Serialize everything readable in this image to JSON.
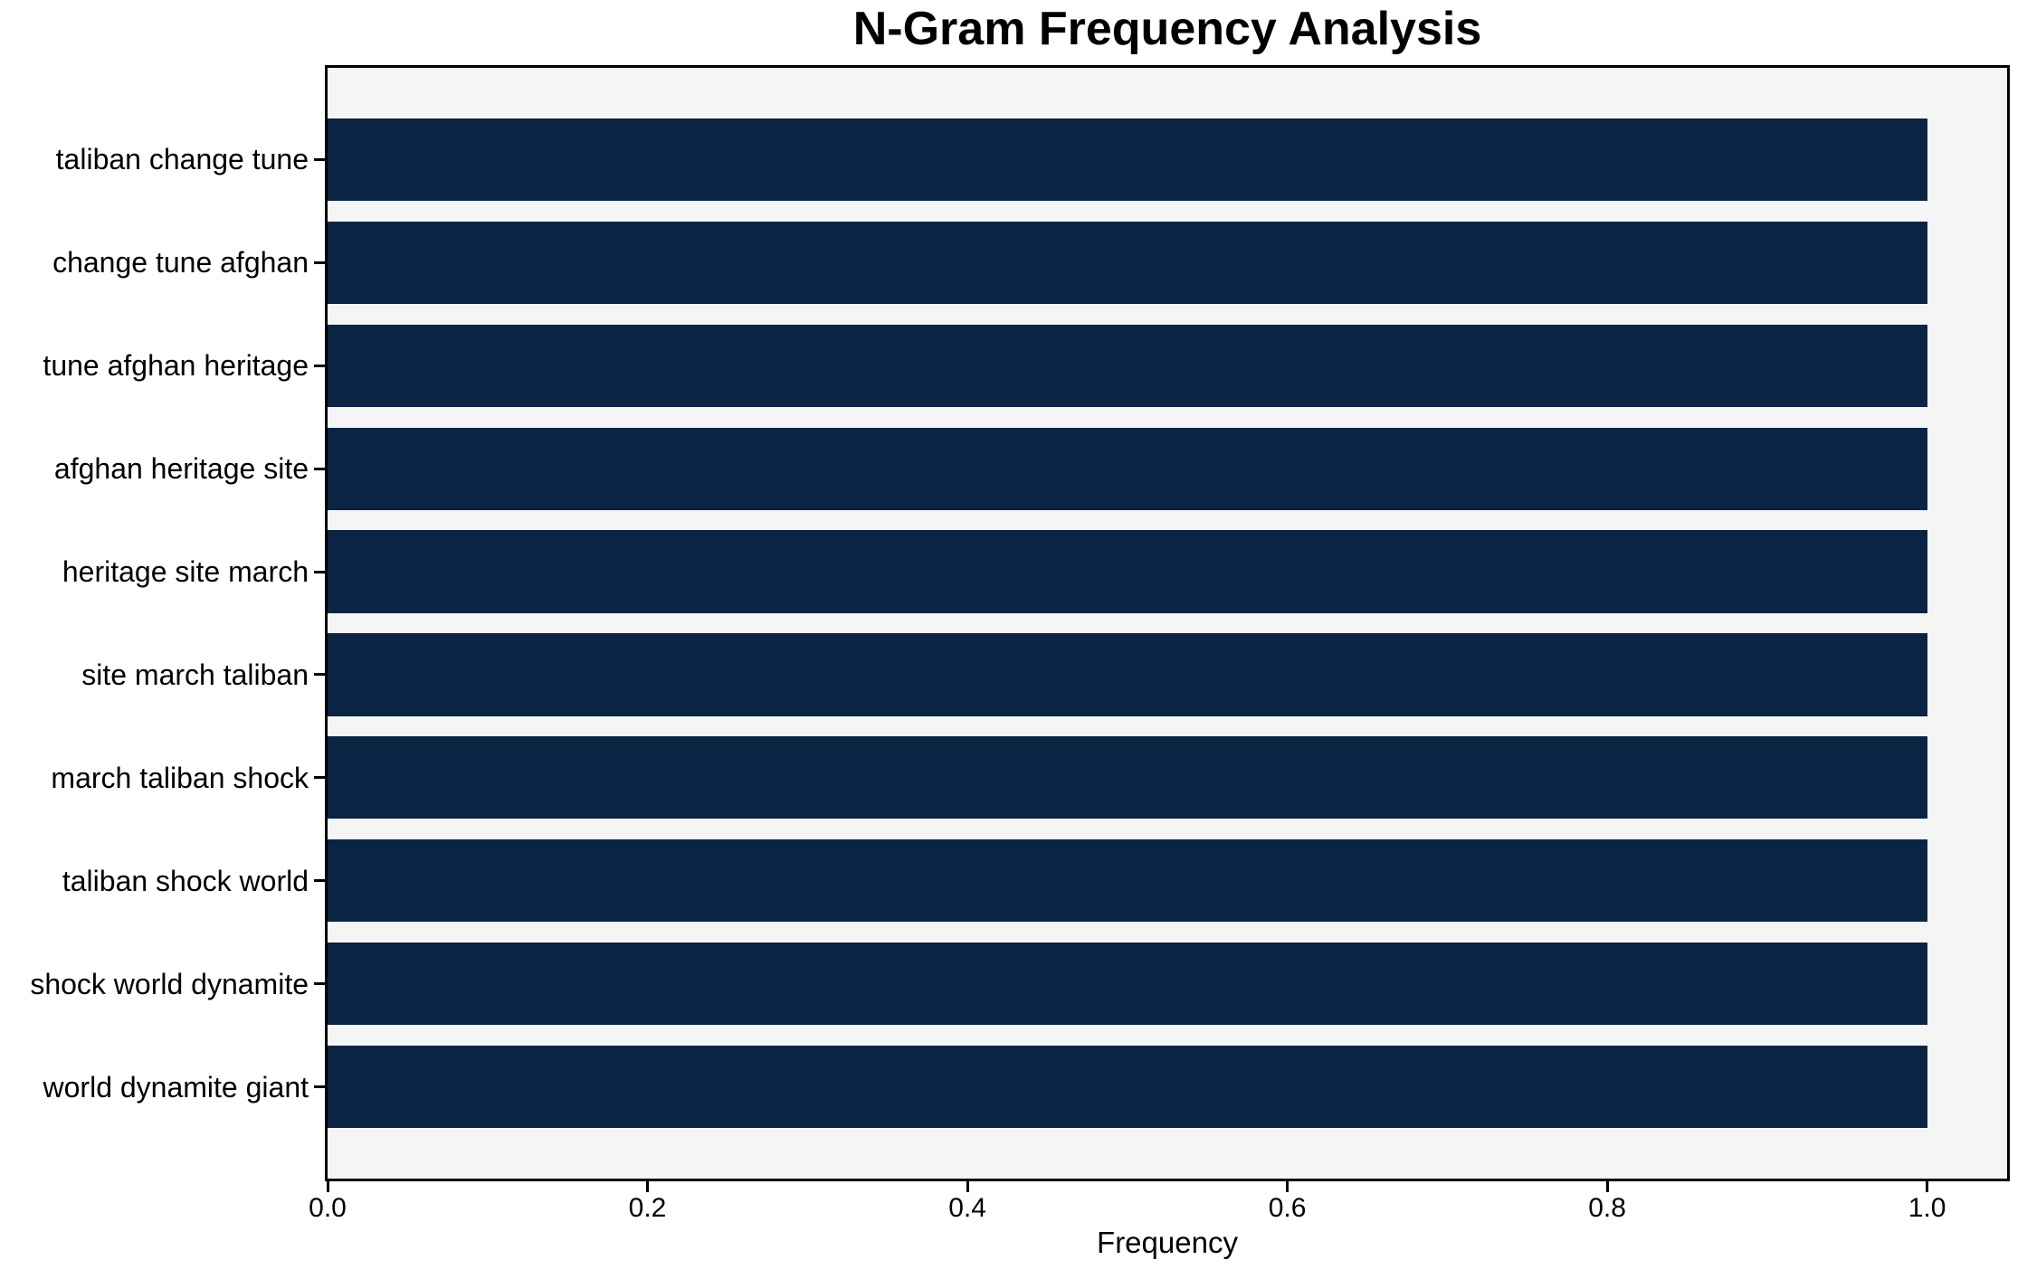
{
  "chart_data": {
    "type": "bar",
    "orientation": "horizontal",
    "title": "N-Gram Frequency Analysis",
    "xlabel": "Frequency",
    "ylabel": "",
    "categories": [
      "taliban change tune",
      "change tune afghan",
      "tune afghan heritage",
      "afghan heritage site",
      "heritage site march",
      "site march taliban",
      "march taliban shock",
      "taliban shock world",
      "shock world dynamite",
      "world dynamite giant"
    ],
    "values": [
      1.0,
      1.0,
      1.0,
      1.0,
      1.0,
      1.0,
      1.0,
      1.0,
      1.0,
      1.0
    ],
    "xlim": [
      0,
      1.05
    ],
    "xticks": [
      0.0,
      0.2,
      0.4,
      0.6,
      0.8,
      1.0
    ],
    "xticklabels": [
      "0.0",
      "0.2",
      "0.4",
      "0.6",
      "0.8",
      "1.0"
    ],
    "grid": false,
    "legend": null,
    "colors": {
      "bar": "#0a2444",
      "plot_background": "#f5f5f5",
      "figure_background": "#ffffff",
      "axis": "#000000",
      "text": "#000000"
    }
  }
}
